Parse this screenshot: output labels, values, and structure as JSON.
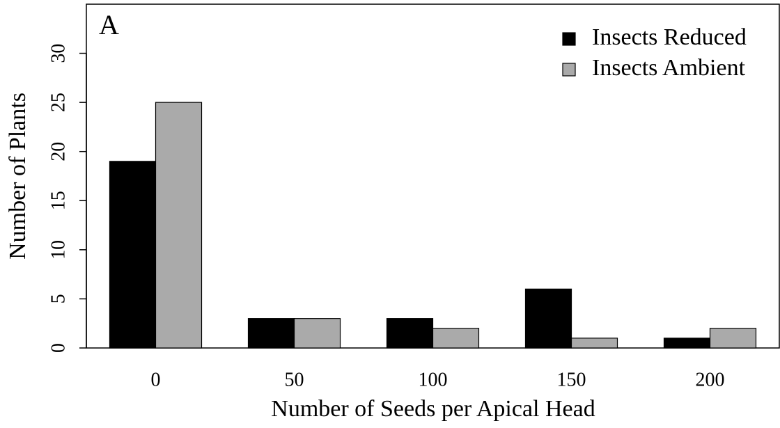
{
  "chart_data": {
    "type": "bar",
    "panel_label": "A",
    "x_label": "Number of Seeds per Apical Head",
    "y_label": "Number of Plants",
    "categories": [
      "0",
      "50",
      "100",
      "150",
      "200"
    ],
    "series": [
      {
        "name": "Insects Reduced",
        "color": "#000000",
        "values": [
          19,
          3,
          3,
          6,
          1
        ]
      },
      {
        "name": "Insects Ambient",
        "color": "#aaaaaa",
        "values": [
          25,
          3,
          2,
          1,
          2
        ]
      }
    ],
    "ylim": [
      0,
      35
    ],
    "yticks": [
      0,
      5,
      10,
      15,
      20,
      25,
      30
    ],
    "legend": "top-right"
  }
}
